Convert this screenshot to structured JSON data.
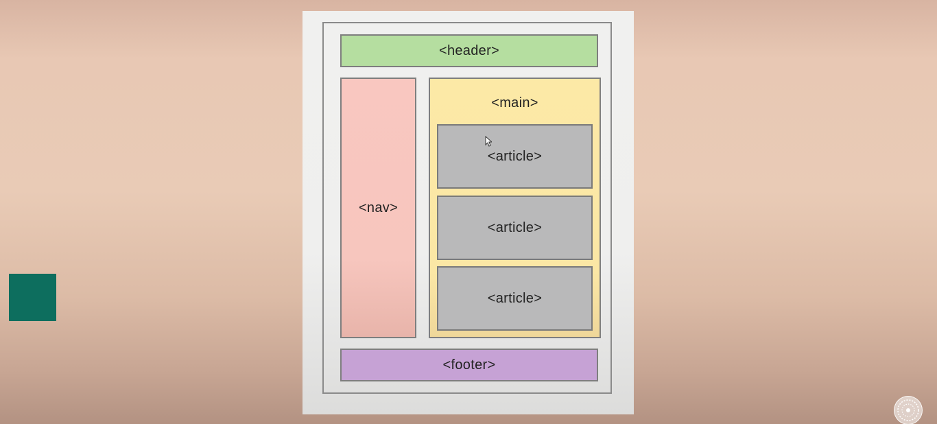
{
  "diagram": {
    "header_label": "<header>",
    "nav_label": "<nav>",
    "main_label": "<main>",
    "articles": [
      {
        "label": "<article>"
      },
      {
        "label": "<article>"
      },
      {
        "label": "<article>"
      }
    ],
    "footer_label": "<footer>"
  },
  "colors": {
    "background": "#e9cbb6",
    "header": "#b5dea0",
    "nav": "#f7c6be",
    "main": "#fbe7a5",
    "article": "#b9b9ba",
    "footer": "#c6a2d5",
    "teal_square": "#0d6e5e"
  },
  "icons": {
    "cursor": "mouse-cursor-icon",
    "watermark": "channel-logo-icon"
  }
}
